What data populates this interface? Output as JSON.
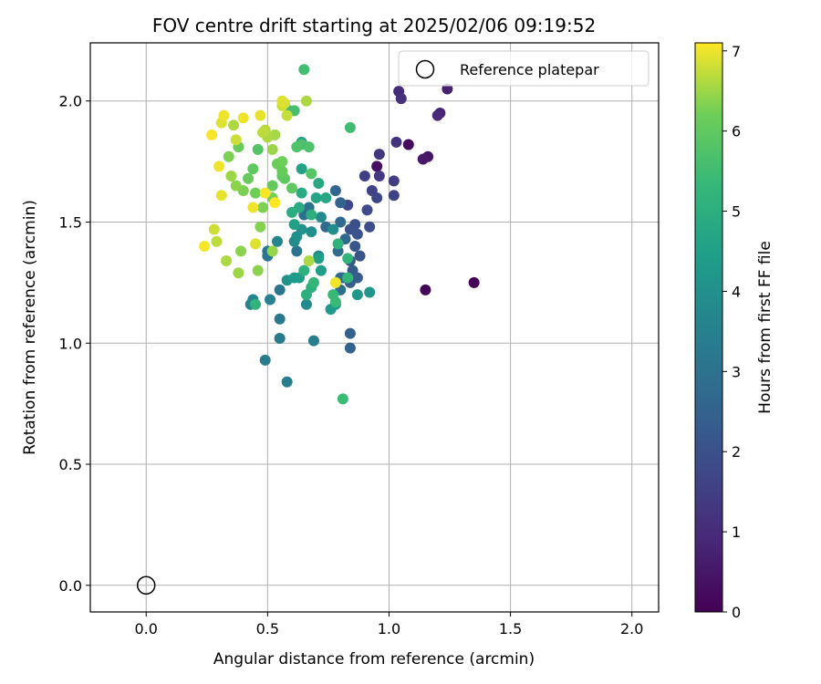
{
  "chart_data": {
    "type": "scatter",
    "title": "FOV centre drift starting at 2025/02/06 09:19:52",
    "xlabel": "Angular distance from reference (arcmin)",
    "ylabel": "Rotation from reference (arcmin)",
    "xlim": [
      -0.23,
      2.11
    ],
    "ylim": [
      -0.11,
      2.24
    ],
    "xticks": [
      0.0,
      0.5,
      1.0,
      1.5,
      2.0
    ],
    "xtick_labels": [
      "0.0",
      "0.5",
      "1.0",
      "1.5",
      "2.0"
    ],
    "yticks": [
      0.0,
      0.5,
      1.0,
      1.5,
      2.0
    ],
    "ytick_labels": [
      "0.0",
      "0.5",
      "1.0",
      "1.5",
      "2.0"
    ],
    "grid": true,
    "colormap": "viridis",
    "colorbar": {
      "label": "Hours from first FF file",
      "min": 0,
      "max": 7.1,
      "ticks": [
        0,
        1,
        2,
        3,
        4,
        5,
        6,
        7
      ],
      "tick_labels": [
        "0",
        "1",
        "2",
        "3",
        "4",
        "5",
        "6",
        "7"
      ]
    },
    "legend": {
      "position": "top-right",
      "entries": [
        "Reference platepar"
      ]
    },
    "reference_point": {
      "x": 0.0,
      "y": 0.0
    },
    "point_columns": [
      "x",
      "y",
      "hours"
    ],
    "points": [
      [
        1.35,
        1.25,
        0.05
      ],
      [
        1.15,
        1.22,
        0.1
      ],
      [
        1.08,
        1.82,
        0.2
      ],
      [
        0.95,
        1.73,
        0.3
      ],
      [
        1.16,
        1.77,
        0.45
      ],
      [
        1.14,
        1.76,
        0.55
      ],
      [
        1.24,
        2.05,
        0.7
      ],
      [
        1.21,
        1.95,
        0.8
      ],
      [
        1.2,
        1.94,
        0.9
      ],
      [
        1.04,
        2.04,
        1.0
      ],
      [
        1.05,
        2.01,
        1.1
      ],
      [
        1.03,
        1.83,
        1.2
      ],
      [
        0.96,
        1.78,
        1.3
      ],
      [
        0.96,
        1.69,
        1.35
      ],
      [
        1.02,
        1.67,
        1.45
      ],
      [
        0.9,
        1.69,
        1.5
      ],
      [
        0.93,
        1.63,
        1.55
      ],
      [
        1.02,
        1.61,
        1.6
      ],
      [
        0.95,
        1.6,
        1.7
      ],
      [
        0.83,
        1.57,
        1.75
      ],
      [
        0.91,
        1.55,
        1.8
      ],
      [
        0.92,
        1.48,
        1.9
      ],
      [
        0.86,
        1.49,
        1.95
      ],
      [
        0.84,
        1.47,
        2.0
      ],
      [
        0.87,
        1.45,
        2.05
      ],
      [
        0.88,
        1.36,
        2.1
      ],
      [
        0.86,
        1.4,
        2.15
      ],
      [
        0.84,
        1.34,
        2.2
      ],
      [
        0.85,
        1.3,
        2.25
      ],
      [
        0.87,
        1.27,
        2.3
      ],
      [
        0.84,
        1.25,
        2.35
      ],
      [
        0.81,
        1.27,
        2.4
      ],
      [
        0.84,
        1.04,
        2.45
      ],
      [
        0.84,
        0.98,
        2.5
      ],
      [
        0.8,
        1.58,
        2.55
      ],
      [
        0.78,
        1.63,
        2.6
      ],
      [
        0.8,
        1.5,
        2.65
      ],
      [
        0.82,
        1.43,
        2.7
      ],
      [
        0.74,
        1.48,
        2.75
      ],
      [
        0.79,
        1.38,
        2.8
      ],
      [
        0.8,
        1.27,
        2.85
      ],
      [
        0.8,
        1.22,
        2.9
      ],
      [
        0.65,
        1.53,
        2.95
      ],
      [
        0.67,
        1.56,
        3.0
      ],
      [
        0.62,
        1.38,
        3.05
      ],
      [
        0.55,
        1.22,
        3.1
      ],
      [
        0.5,
        1.36,
        3.15
      ],
      [
        0.5,
        1.38,
        3.2
      ],
      [
        0.55,
        1.1,
        3.25
      ],
      [
        0.55,
        1.02,
        3.3
      ],
      [
        0.49,
        0.93,
        3.35
      ],
      [
        0.58,
        0.84,
        3.4
      ],
      [
        0.69,
        1.01,
        3.45
      ],
      [
        0.51,
        1.18,
        3.5
      ],
      [
        0.43,
        1.16,
        3.55
      ],
      [
        0.44,
        1.18,
        3.6
      ],
      [
        0.54,
        1.42,
        3.65
      ],
      [
        0.71,
        1.36,
        3.7
      ],
      [
        0.61,
        1.42,
        3.75
      ],
      [
        0.66,
        1.16,
        3.8
      ],
      [
        0.72,
        1.52,
        3.85
      ],
      [
        0.77,
        1.47,
        3.9
      ],
      [
        0.68,
        1.46,
        3.95
      ],
      [
        0.62,
        1.44,
        4.0
      ],
      [
        0.64,
        1.47,
        4.05
      ],
      [
        0.58,
        1.26,
        4.1
      ],
      [
        0.92,
        1.21,
        4.15
      ],
      [
        0.87,
        1.2,
        4.2
      ],
      [
        0.78,
        1.16,
        4.25
      ],
      [
        0.76,
        1.14,
        4.3
      ],
      [
        0.61,
        1.27,
        4.35
      ],
      [
        0.63,
        1.27,
        4.4
      ],
      [
        0.72,
        1.3,
        4.45
      ],
      [
        0.71,
        1.35,
        4.5
      ],
      [
        0.61,
        1.49,
        4.55
      ],
      [
        0.64,
        1.72,
        4.6
      ],
      [
        0.64,
        1.83,
        4.65
      ],
      [
        0.7,
        1.6,
        4.7
      ],
      [
        0.74,
        1.6,
        4.75
      ],
      [
        0.71,
        1.66,
        4.8
      ],
      [
        0.64,
        1.62,
        4.85
      ],
      [
        0.63,
        1.56,
        4.9
      ],
      [
        0.6,
        1.54,
        4.95
      ],
      [
        0.66,
        1.2,
        5.0
      ],
      [
        0.68,
        1.23,
        5.05
      ],
      [
        0.65,
        1.3,
        5.1
      ],
      [
        0.79,
        1.41,
        5.15
      ],
      [
        0.83,
        1.35,
        5.2
      ],
      [
        0.83,
        1.27,
        5.25
      ],
      [
        0.69,
        1.25,
        5.3
      ],
      [
        0.77,
        1.2,
        5.35
      ],
      [
        0.78,
        1.17,
        5.4
      ],
      [
        0.81,
        0.77,
        5.45
      ],
      [
        0.84,
        1.89,
        5.5
      ],
      [
        0.65,
        2.13,
        5.55
      ],
      [
        0.61,
        1.96,
        5.6
      ],
      [
        0.64,
        1.82,
        5.65
      ],
      [
        0.67,
        1.81,
        5.7
      ],
      [
        0.62,
        1.81,
        5.75
      ],
      [
        0.46,
        1.8,
        5.8
      ],
      [
        0.68,
        1.7,
        5.85
      ],
      [
        0.56,
        1.69,
        5.9
      ],
      [
        0.57,
        1.68,
        5.95
      ],
      [
        0.6,
        1.64,
        6.0
      ],
      [
        0.52,
        1.65,
        6.05
      ],
      [
        0.56,
        1.71,
        6.1
      ],
      [
        0.54,
        1.74,
        6.15
      ],
      [
        0.56,
        1.75,
        6.2
      ],
      [
        0.52,
        1.6,
        6.25
      ],
      [
        0.48,
        1.56,
        6.3
      ],
      [
        0.47,
        1.48,
        6.35
      ],
      [
        0.46,
        1.3,
        6.4
      ],
      [
        0.52,
        1.38,
        6.45
      ],
      [
        0.52,
        1.8,
        6.5
      ],
      [
        0.53,
        1.86,
        6.55
      ],
      [
        0.5,
        1.85,
        6.6
      ],
      [
        0.49,
        1.88,
        6.65
      ],
      [
        0.48,
        1.87,
        6.7
      ],
      [
        0.58,
        1.94,
        6.75
      ],
      [
        0.56,
        1.98,
        6.8
      ],
      [
        0.57,
        1.99,
        6.85
      ],
      [
        0.56,
        2.0,
        6.9
      ],
      [
        0.47,
        1.94,
        6.95
      ],
      [
        0.4,
        1.93,
        7.0
      ],
      [
        0.44,
        1.72,
        6.0
      ],
      [
        0.42,
        1.68,
        6.1
      ],
      [
        0.45,
        1.62,
        6.2
      ],
      [
        0.4,
        1.63,
        6.3
      ],
      [
        0.37,
        1.65,
        6.4
      ],
      [
        0.35,
        1.69,
        6.5
      ],
      [
        0.38,
        1.81,
        6.1
      ],
      [
        0.34,
        1.77,
        6.3
      ],
      [
        0.36,
        1.9,
        6.6
      ],
      [
        0.37,
        1.84,
        6.8
      ],
      [
        0.32,
        1.94,
        7.0
      ],
      [
        0.31,
        1.91,
        6.9
      ],
      [
        0.27,
        1.86,
        7.05
      ],
      [
        0.3,
        1.73,
        7.0
      ],
      [
        0.31,
        1.61,
        6.95
      ],
      [
        0.44,
        1.56,
        7.0
      ],
      [
        0.49,
        1.62,
        7.05
      ],
      [
        0.53,
        1.58,
        7.1
      ],
      [
        0.28,
        1.47,
        6.8
      ],
      [
        0.29,
        1.42,
        6.7
      ],
      [
        0.24,
        1.4,
        7.05
      ],
      [
        0.33,
        1.34,
        6.6
      ],
      [
        0.38,
        1.29,
        6.5
      ],
      [
        0.39,
        1.38,
        6.4
      ],
      [
        0.45,
        1.41,
        6.9
      ],
      [
        0.45,
        1.16,
        5.2
      ],
      [
        0.67,
        1.34,
        6.6
      ],
      [
        0.78,
        1.25,
        7.0
      ],
      [
        0.59,
        1.96,
        5.4
      ],
      [
        0.66,
        2.0,
        6.6
      ],
      [
        0.68,
        1.53,
        5.0
      ]
    ]
  }
}
